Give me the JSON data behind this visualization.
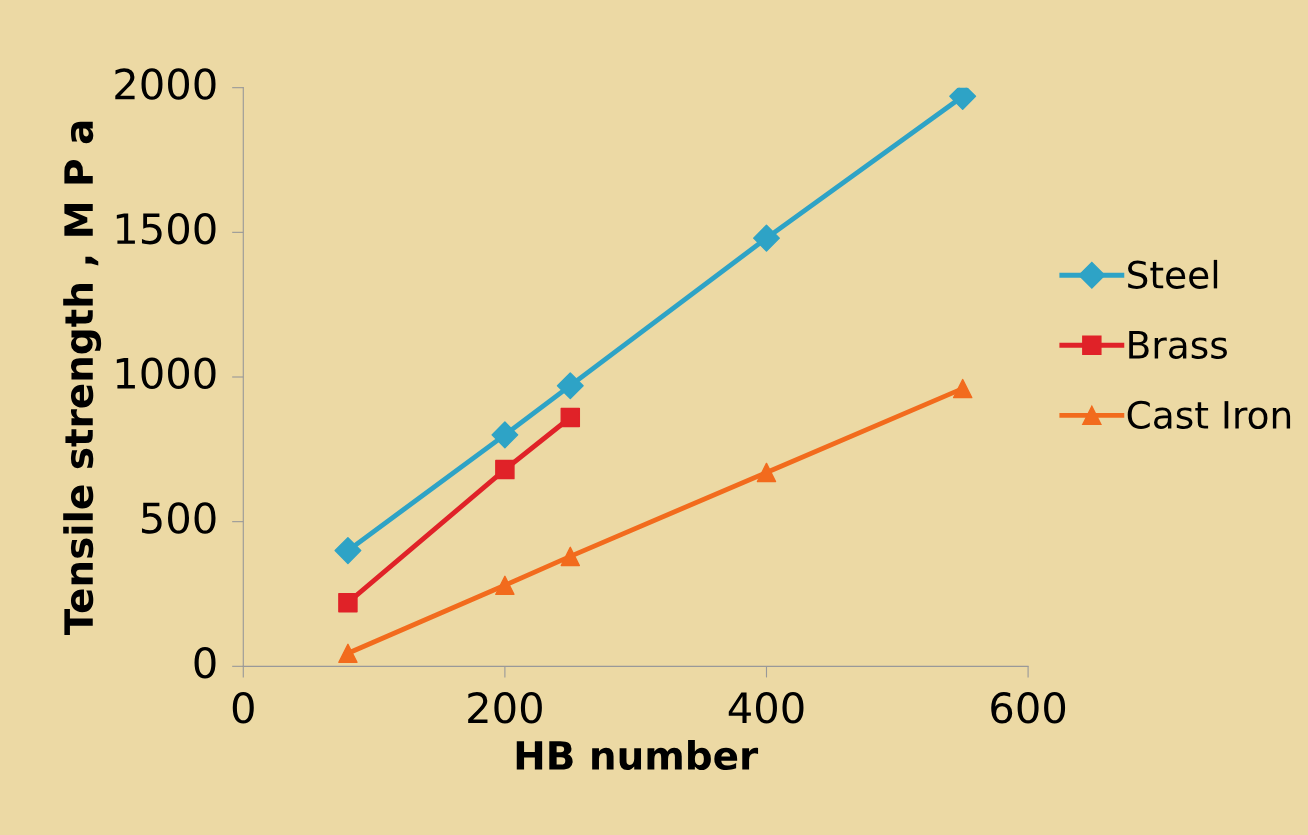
{
  "chart_data": {
    "type": "line",
    "xlabel": "HB number",
    "ylabel": "Tensile strength , M P a",
    "xlim": [
      0,
      600
    ],
    "xticks": [
      0,
      200,
      400,
      600
    ],
    "ylim": [
      0,
      2000
    ],
    "yticks": [
      0,
      500,
      1000,
      1500,
      2000
    ],
    "grid": false,
    "legend": "right",
    "series": [
      {
        "name": "Steel",
        "color": "#2ea3c6",
        "marker": "diamond",
        "x": [
          80,
          200,
          250,
          400,
          550
        ],
        "values": [
          400,
          800,
          970,
          1480,
          1970
        ]
      },
      {
        "name": "Brass",
        "color": "#e02228",
        "marker": "square",
        "x": [
          80,
          200,
          250
        ],
        "values": [
          220,
          680,
          860
        ]
      },
      {
        "name": "Cast Iron",
        "color": "#f26b1d",
        "marker": "triangle",
        "x": [
          80,
          200,
          250,
          400,
          550
        ],
        "values": [
          45,
          280,
          380,
          670,
          960
        ]
      }
    ]
  }
}
